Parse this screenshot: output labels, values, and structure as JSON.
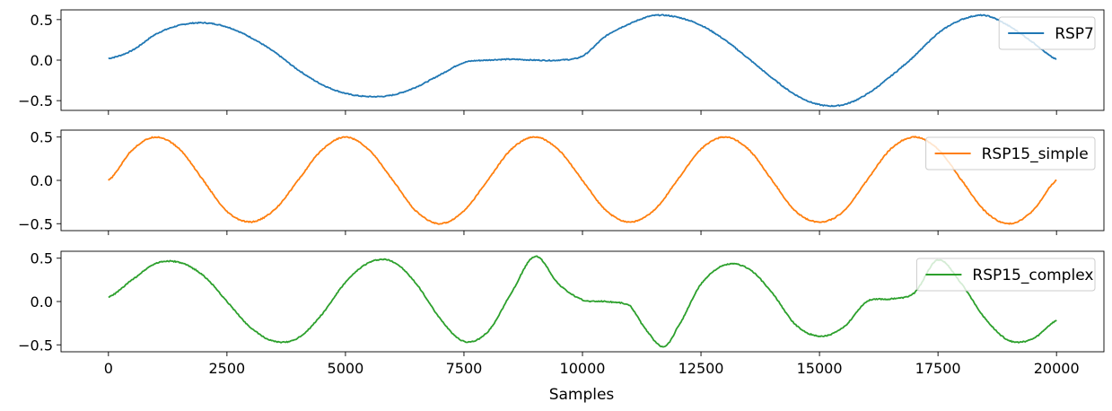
{
  "chart_data": {
    "type": "line",
    "layout": "3 vertically stacked subplots, shared x-axis",
    "x_range": [
      0,
      20000
    ],
    "xlim": [
      -1000,
      21000
    ],
    "xlabel": "Samples",
    "x_ticks": [
      0,
      2500,
      5000,
      7500,
      10000,
      12500,
      15000,
      17500,
      20000
    ],
    "y_ticks": [
      -0.5,
      0.0,
      0.5
    ],
    "grid": false,
    "legend_position": "upper right of each subplot",
    "subplots": [
      {
        "name": "RSP7",
        "color": "#1f77b4",
        "ylim": [
          -0.62,
          0.62
        ],
        "x": [
          0,
          500,
          1000,
          1500,
          2000,
          2500,
          3000,
          3500,
          4000,
          4500,
          5000,
          5500,
          6000,
          6500,
          7000,
          7500,
          8000,
          8500,
          9000,
          9500,
          10000,
          10500,
          11000,
          11500,
          12000,
          12500,
          13000,
          13500,
          14000,
          14500,
          15000,
          15500,
          16000,
          16500,
          17000,
          17500,
          18000,
          18500,
          19000,
          19500,
          20000
        ],
        "y": [
          0.02,
          0.12,
          0.32,
          0.43,
          0.46,
          0.41,
          0.28,
          0.1,
          -0.12,
          -0.3,
          -0.41,
          -0.45,
          -0.43,
          -0.33,
          -0.18,
          -0.03,
          0.0,
          0.01,
          0.0,
          0.0,
          0.05,
          0.3,
          0.45,
          0.55,
          0.53,
          0.43,
          0.25,
          0.02,
          -0.22,
          -0.43,
          -0.55,
          -0.55,
          -0.42,
          -0.2,
          0.05,
          0.33,
          0.5,
          0.55,
          0.42,
          0.22,
          0.01
        ]
      },
      {
        "name": "RSP15_simple",
        "color": "#ff7f0e",
        "ylim": [
          -0.58,
          0.58
        ],
        "x": [
          0,
          500,
          1000,
          1500,
          2000,
          2500,
          3000,
          3500,
          4000,
          4500,
          5000,
          5500,
          6000,
          6500,
          7000,
          7500,
          8000,
          8500,
          9000,
          9500,
          10000,
          10500,
          11000,
          11500,
          12000,
          12500,
          13000,
          13500,
          14000,
          14500,
          15000,
          15500,
          16000,
          16500,
          17000,
          17500,
          18000,
          18500,
          19000,
          19500,
          20000
        ],
        "y": [
          0.0,
          0.35,
          0.5,
          0.36,
          0.0,
          -0.36,
          -0.48,
          -0.34,
          0.0,
          0.35,
          0.5,
          0.35,
          0.0,
          -0.36,
          -0.5,
          -0.35,
          0.0,
          0.36,
          0.5,
          0.35,
          0.0,
          -0.35,
          -0.48,
          -0.35,
          0.0,
          0.36,
          0.5,
          0.36,
          0.0,
          -0.36,
          -0.48,
          -0.36,
          0.0,
          0.36,
          0.5,
          0.36,
          0.0,
          -0.36,
          -0.5,
          -0.35,
          0.0
        ]
      },
      {
        "name": "RSP15_complex",
        "color": "#2ca02c",
        "ylim": [
          -0.58,
          0.58
        ],
        "x": [
          0,
          500,
          1000,
          1500,
          2000,
          2500,
          3000,
          3500,
          4000,
          4500,
          5000,
          5500,
          6000,
          6500,
          7000,
          7500,
          8000,
          8500,
          9000,
          9500,
          10000,
          10500,
          11000,
          11300,
          11700,
          12000,
          12500,
          13000,
          13500,
          14000,
          14500,
          15000,
          15500,
          16000,
          16500,
          17000,
          17500,
          18000,
          18500,
          19000,
          19500,
          20000
        ],
        "y": [
          0.05,
          0.25,
          0.44,
          0.45,
          0.3,
          0.0,
          -0.3,
          -0.46,
          -0.42,
          -0.15,
          0.22,
          0.45,
          0.46,
          0.2,
          -0.2,
          -0.46,
          -0.35,
          0.1,
          0.52,
          0.2,
          0.02,
          0.0,
          -0.05,
          -0.3,
          -0.52,
          -0.3,
          0.2,
          0.42,
          0.38,
          0.1,
          -0.27,
          -0.4,
          -0.3,
          0.0,
          0.03,
          0.1,
          0.48,
          0.2,
          -0.2,
          -0.45,
          -0.43,
          -0.22
        ]
      }
    ]
  }
}
